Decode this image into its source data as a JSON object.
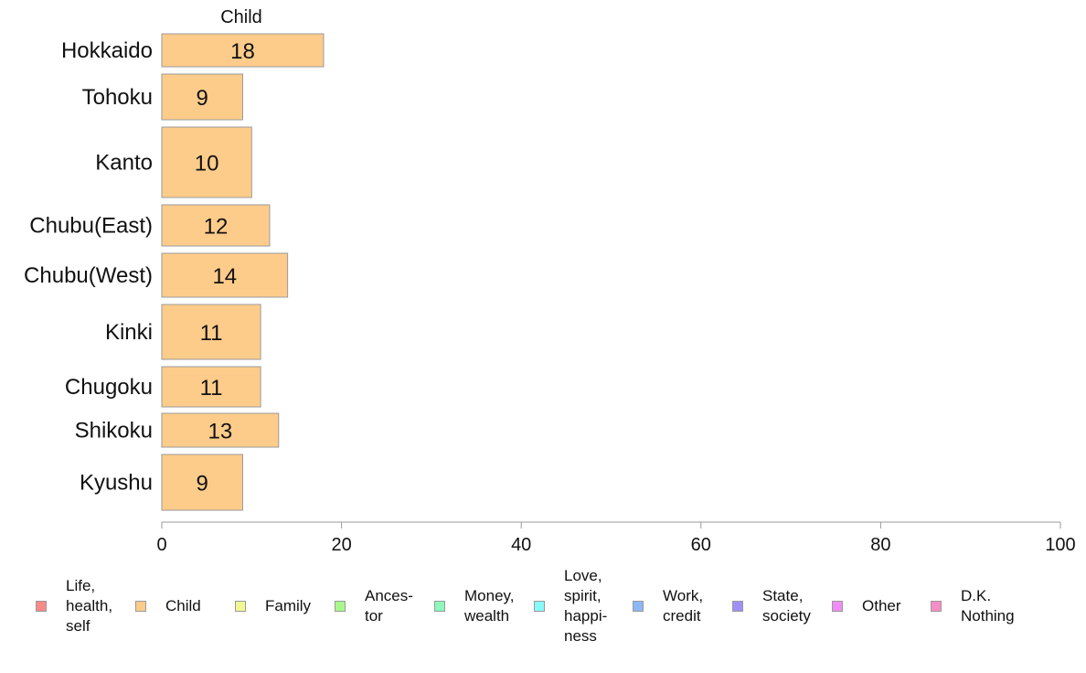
{
  "chart_data": {
    "type": "bar",
    "orientation": "horizontal",
    "panel_title": "Child",
    "categories": [
      "Hokkaido",
      "Tohoku",
      "Kanto",
      "Chubu(East)",
      "Chubu(West)",
      "Kinki",
      "Chugoku",
      "Shikoku",
      "Kyushu"
    ],
    "values": [
      18,
      9,
      10,
      12,
      14,
      11,
      11,
      13,
      9
    ],
    "data_labels": [
      "18",
      "9",
      "10",
      "12",
      "14",
      "11",
      "11",
      "13",
      "9"
    ],
    "xlim": [
      0,
      100
    ],
    "xticks": [
      0,
      20,
      40,
      60,
      80,
      100
    ],
    "xtick_labels": [
      "0",
      "20",
      "40",
      "60",
      "80",
      "100"
    ],
    "grid": false,
    "bar_color": "#FECC8A",
    "bar_edge_color": "#9a9a9a",
    "legend_position": "bottom",
    "legend": [
      {
        "label": "Life,\nhealth,\nself",
        "color": "#F98A88"
      },
      {
        "label": "Child",
        "color": "#FECC8A"
      },
      {
        "label": "Family",
        "color": "#F1F793"
      },
      {
        "label": "Ances-\ntor",
        "color": "#A8F88D"
      },
      {
        "label": "Money,\nwealth",
        "color": "#8DF7BE"
      },
      {
        "label": "Love,\nspirit,\nhappi-\nness",
        "color": "#88F9F9"
      },
      {
        "label": "Work,\ncredit",
        "color": "#8DB8F7"
      },
      {
        "label": "State,\nsociety",
        "color": "#A090F6"
      },
      {
        "label": "Other",
        "color": "#EF8DF7"
      },
      {
        "label": "D.K.\nNothing",
        "color": "#F78DC6"
      }
    ]
  }
}
